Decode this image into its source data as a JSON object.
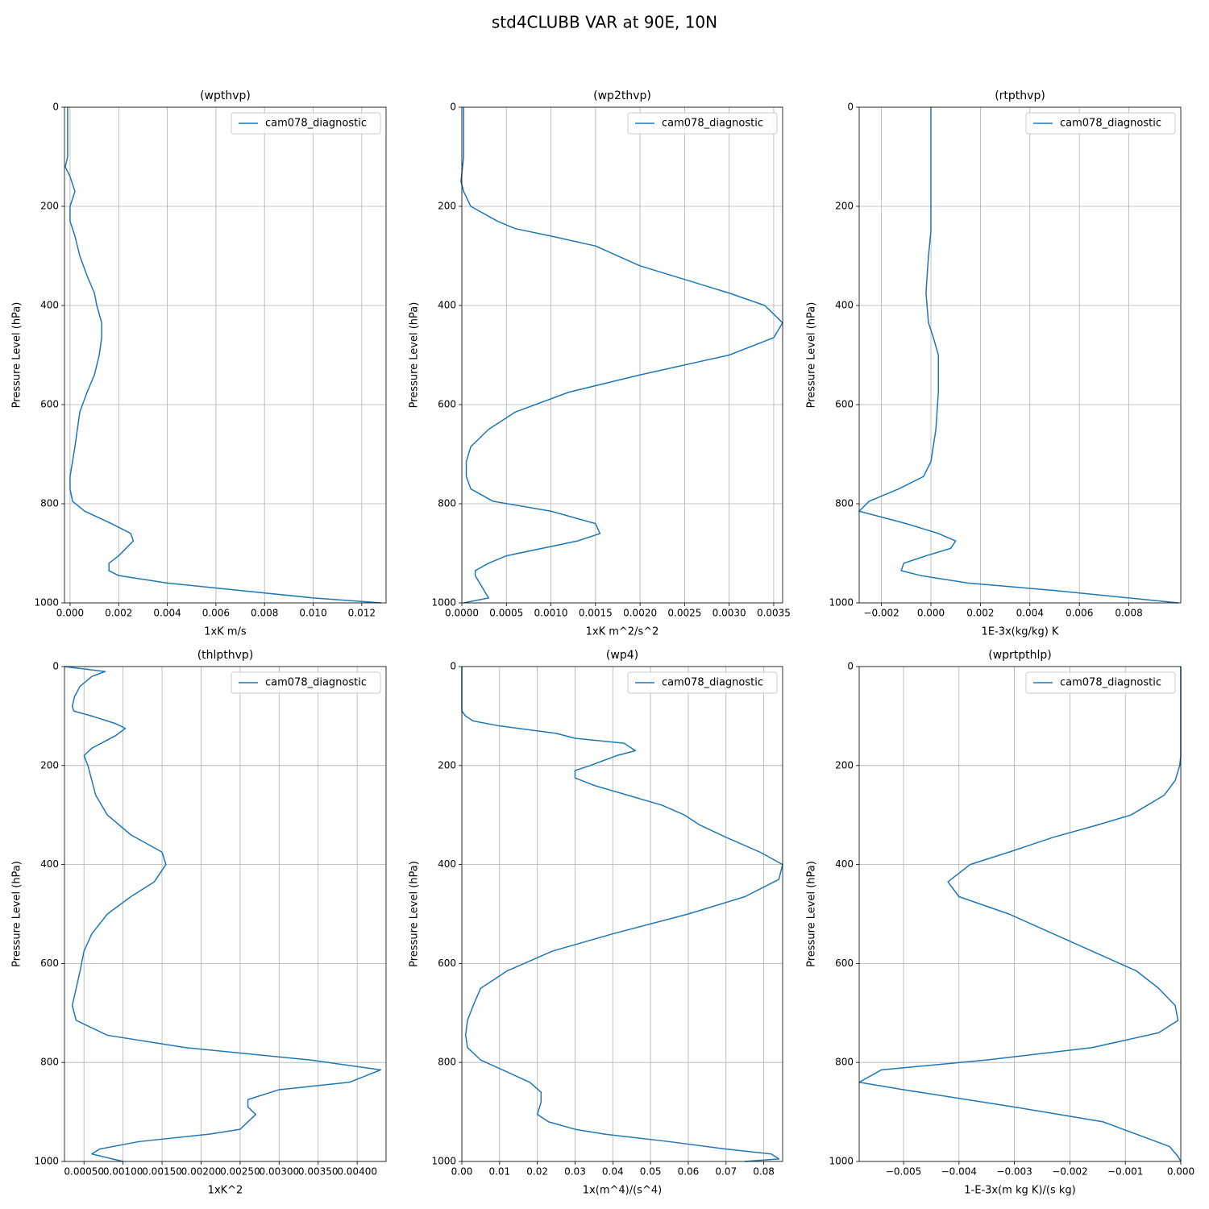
{
  "title": "std4CLUBB VAR at 90E, 10N",
  "chart_data": [
    {
      "type": "line",
      "title": "(wpthvp)",
      "x_label": "1xK m/s",
      "y_label": "Pressure Level (hPa)",
      "y": [
        0,
        50,
        100,
        120,
        140,
        170,
        200,
        230,
        260,
        300,
        340,
        375,
        400,
        435,
        465,
        500,
        540,
        575,
        615,
        650,
        685,
        715,
        745,
        770,
        795,
        815,
        840,
        860,
        875,
        905,
        920,
        935,
        945,
        960,
        975,
        990,
        1000
      ],
      "series": [
        {
          "name": "cam078_diagnostic",
          "color": "#1f77b4",
          "values": [
            -0.0001,
            -0.0001,
            -0.0001,
            -0.0002,
            0,
            0.0002,
            0,
            0,
            0.0002,
            0.0004,
            0.0007,
            0.001,
            0.0011,
            0.0013,
            0.0013,
            0.0012,
            0.001,
            0.0007,
            0.0004,
            0.0003,
            0.0002,
            0.0001,
            0,
            0,
            0.0001,
            0.0006,
            0.0017,
            0.0025,
            0.0026,
            0.002,
            0.0016,
            0.0016,
            0.002,
            0.004,
            0.007,
            0.01,
            0.0128
          ]
        }
      ],
      "xlim": [
        -0.00023,
        0.013
      ],
      "ylim": [
        1000,
        0
      ],
      "xticks": [
        {
          "value": 0,
          "label": "0.000"
        },
        0.002,
        0.004,
        0.006,
        0.008,
        {
          "value": 0.01,
          "label": "0.010"
        },
        0.012
      ],
      "yticks": [
        0,
        200,
        400,
        600,
        800,
        1000
      ],
      "grid": true,
      "legend": "upper right"
    },
    {
      "type": "line",
      "title": "(wp2thvp)",
      "x_label": "1xK m^2/s^2",
      "y_label": "Pressure Level (hPa)",
      "y": [
        0,
        50,
        100,
        150,
        170,
        200,
        210,
        230,
        245,
        260,
        280,
        320,
        375,
        400,
        435,
        465,
        500,
        540,
        575,
        615,
        650,
        685,
        715,
        745,
        770,
        795,
        815,
        840,
        860,
        875,
        905,
        920,
        935,
        945,
        960,
        975,
        990,
        1000
      ],
      "series": [
        {
          "name": "cam078_diagnostic",
          "color": "#1f77b4",
          "values": [
            2e-05,
            2e-05,
            2e-05,
            -1e-05,
            2e-05,
            0.0001,
            0.0002,
            0.0004,
            0.0006,
            0.001,
            0.0015,
            0.002,
            0.003,
            0.0034,
            0.0036,
            0.0035,
            0.003,
            0.002,
            0.0012,
            0.0006,
            0.0003,
            0.0001,
            5e-05,
            5e-05,
            0.0001,
            0.00035,
            0.001,
            0.0015,
            0.00155,
            0.0013,
            0.0005,
            0.0003,
            0.00015,
            0.00015,
            0.0002,
            0.00025,
            0.0003,
            2e-05
          ]
        }
      ],
      "xlim": [
        0,
        0.0036
      ],
      "ylim": [
        1000,
        0
      ],
      "xticks": [
        {
          "value": 0,
          "label": "0.0000"
        },
        0.0005,
        {
          "value": 0.001,
          "label": "0.0010"
        },
        0.0015,
        {
          "value": 0.002,
          "label": "0.0020"
        },
        0.0025,
        {
          "value": 0.003,
          "label": "0.0030"
        },
        0.0035
      ],
      "yticks": [
        0,
        200,
        400,
        600,
        800,
        1000
      ],
      "grid": true,
      "legend": "upper right"
    },
    {
      "type": "line",
      "title": "(rtpthvp)",
      "x_label": "1E-3x(kg/kg) K",
      "y_label": "Pressure Level (hPa)",
      "y": [
        0,
        100,
        200,
        250,
        300,
        375,
        435,
        465,
        500,
        540,
        575,
        650,
        715,
        745,
        770,
        795,
        815,
        840,
        860,
        875,
        890,
        905,
        920,
        935,
        945,
        960,
        975,
        990,
        1000
      ],
      "series": [
        {
          "name": "cam078_diagnostic",
          "color": "#1f77b4",
          "values": [
            0,
            0,
            0,
            0,
            -0.0001,
            -0.0002,
            -0.0001,
            0.0001,
            0.0003,
            0.0003,
            0.0003,
            0.0002,
            0,
            -0.0003,
            -0.0013,
            -0.0025,
            -0.0029,
            -0.001,
            0.0003,
            0.001,
            0.0008,
            -0.0002,
            -0.0011,
            -0.0012,
            -0.0004,
            0.0015,
            0.005,
            0.008,
            0.01
          ]
        }
      ],
      "xlim": [
        -0.0029,
        0.0101
      ],
      "ylim": [
        1000,
        0
      ],
      "xticks": [
        {
          "value": -0.002,
          "label": "−0.002"
        },
        {
          "value": 0,
          "label": "0.000"
        },
        0.002,
        0.004,
        0.006,
        0.008
      ],
      "yticks": [
        0,
        200,
        400,
        600,
        800,
        1000
      ],
      "grid": true,
      "legend": "upper right"
    },
    {
      "type": "line",
      "title": "(thlpthvp)",
      "x_label": "1xK^2",
      "y_label": "Pressure Level (hPa)",
      "y": [
        0,
        10,
        20,
        40,
        60,
        80,
        90,
        100,
        115,
        125,
        140,
        165,
        180,
        200,
        230,
        260,
        300,
        340,
        375,
        400,
        435,
        465,
        500,
        540,
        575,
        615,
        650,
        685,
        715,
        745,
        770,
        795,
        815,
        840,
        855,
        875,
        890,
        905,
        935,
        945,
        960,
        975,
        985,
        1000
      ],
      "series": [
        {
          "name": "cam078_diagnostic",
          "color": "#1f77b4",
          "values": [
            0.00025,
            0.00077,
            0.0006,
            0.00045,
            0.00038,
            0.00035,
            0.00037,
            0.0006,
            0.0009,
            0.00103,
            0.0009,
            0.0006,
            0.0005,
            0.00055,
            0.0006,
            0.00065,
            0.0008,
            0.0011,
            0.0015,
            0.00155,
            0.0014,
            0.0011,
            0.0008,
            0.0006,
            0.0005,
            0.00045,
            0.0004,
            0.00035,
            0.0004,
            0.0008,
            0.0018,
            0.0034,
            0.0043,
            0.0039,
            0.003,
            0.0026,
            0.0026,
            0.0027,
            0.0025,
            0.0021,
            0.0012,
            0.0007,
            0.0006,
            0.001
          ]
        }
      ],
      "xlim": [
        0.00025,
        0.00437
      ],
      "ylim": [
        1000,
        0
      ],
      "xticks": [
        {
          "value": 0.0005,
          "label": "0.00050"
        },
        {
          "value": 0.001,
          "label": "0.00100"
        },
        {
          "value": 0.0015,
          "label": "0.00150"
        },
        {
          "value": 0.002,
          "label": "0.00200"
        },
        {
          "value": 0.0025,
          "label": "0.00250"
        },
        {
          "value": 0.003,
          "label": "0.00300"
        },
        {
          "value": 0.0035,
          "label": "0.00350"
        },
        {
          "value": 0.004,
          "label": "0.00400"
        }
      ],
      "yticks": [
        0,
        200,
        400,
        600,
        800,
        1000
      ],
      "grid": true,
      "legend": "upper right"
    },
    {
      "type": "line",
      "title": "(wp4)",
      "x_label": "1x(m^4)/(s^4)",
      "y_label": "Pressure Level (hPa)",
      "y": [
        0,
        90,
        100,
        110,
        120,
        135,
        145,
        155,
        170,
        180,
        200,
        210,
        225,
        240,
        280,
        300,
        320,
        345,
        375,
        400,
        430,
        465,
        500,
        540,
        575,
        615,
        650,
        685,
        715,
        745,
        770,
        795,
        840,
        860,
        880,
        905,
        920,
        935,
        945,
        960,
        975,
        985,
        995,
        1000
      ],
      "series": [
        {
          "name": "cam078_diagnostic",
          "color": "#1f77b4",
          "values": [
            0,
            0,
            0.001,
            0.003,
            0.01,
            0.025,
            0.03,
            0.043,
            0.046,
            0.041,
            0.034,
            0.03,
            0.03,
            0.035,
            0.053,
            0.059,
            0.063,
            0.07,
            0.079,
            0.085,
            0.084,
            0.075,
            0.06,
            0.04,
            0.024,
            0.012,
            0.005,
            0.003,
            0.0015,
            0.001,
            0.0015,
            0.005,
            0.018,
            0.021,
            0.021,
            0.02,
            0.023,
            0.03,
            0.038,
            0.055,
            0.07,
            0.082,
            0.084,
            0.075
          ]
        }
      ],
      "xlim": [
        0,
        0.085
      ],
      "ylim": [
        1000,
        0
      ],
      "xticks": [
        {
          "value": 0,
          "label": "0.00"
        },
        0.01,
        0.02,
        0.03,
        0.04,
        0.05,
        0.06,
        0.07,
        0.08
      ],
      "yticks": [
        0,
        200,
        400,
        600,
        800,
        1000
      ],
      "grid": true,
      "legend": "upper right"
    },
    {
      "type": "line",
      "title": "(wprtpthlp)",
      "x_label": "1-E-3x(m kg K)/(s kg)",
      "y_label": "Pressure Level (hPa)",
      "y": [
        0,
        100,
        180,
        200,
        230,
        260,
        280,
        300,
        320,
        345,
        375,
        400,
        435,
        465,
        500,
        540,
        575,
        615,
        650,
        685,
        715,
        740,
        770,
        795,
        815,
        840,
        855,
        890,
        905,
        920,
        945,
        970,
        990,
        1000
      ],
      "series": [
        {
          "name": "cam078_diagnostic",
          "color": "#1f77b4",
          "values": [
            0,
            0,
            0,
            -2e-05,
            -0.0001,
            -0.0003,
            -0.0006,
            -0.0009,
            -0.0015,
            -0.0023,
            -0.0031,
            -0.0038,
            -0.0042,
            -0.004,
            -0.0031,
            -0.0023,
            -0.0016,
            -0.0008,
            -0.0004,
            -0.0001,
            -5e-05,
            -0.0004,
            -0.0016,
            -0.0035,
            -0.0054,
            -0.0058,
            -0.005,
            -0.003,
            -0.0022,
            -0.0014,
            -0.0008,
            -0.0002,
            -5e-05,
            0
          ]
        }
      ],
      "xlim": [
        -0.0058,
        0
      ],
      "ylim": [
        1000,
        0
      ],
      "xticks": [
        {
          "value": -0.005,
          "label": "−0.005"
        },
        {
          "value": -0.004,
          "label": "−0.004"
        },
        {
          "value": -0.003,
          "label": "−0.003"
        },
        {
          "value": -0.002,
          "label": "−0.002"
        },
        {
          "value": -0.001,
          "label": "−0.001"
        },
        {
          "value": 0,
          "label": "0.000"
        }
      ],
      "yticks": [
        0,
        200,
        400,
        600,
        800,
        1000
      ],
      "grid": true,
      "legend": "upper right"
    }
  ]
}
